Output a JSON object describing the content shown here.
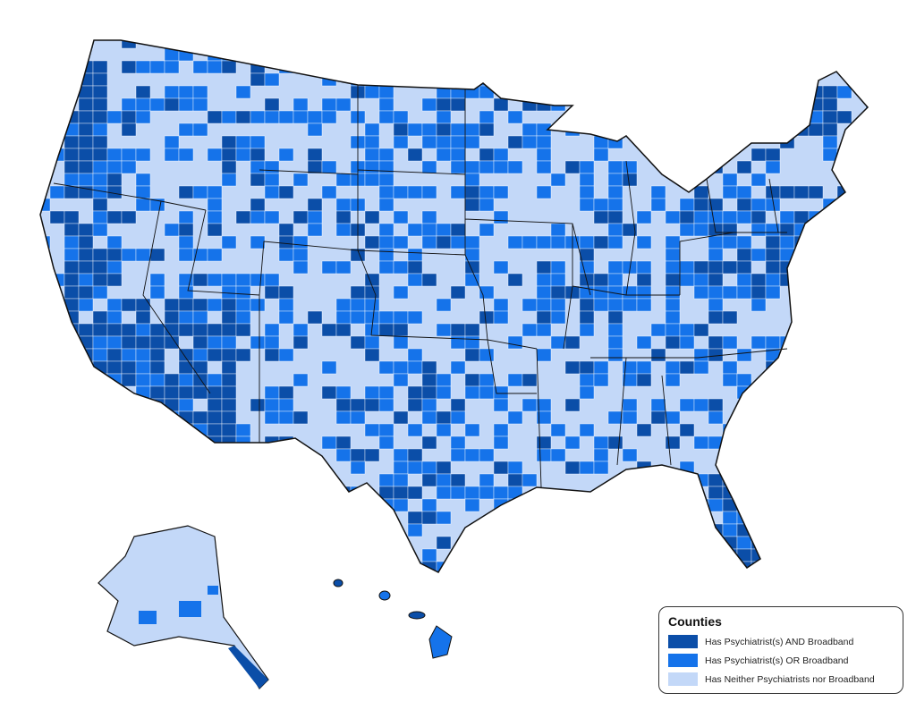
{
  "legend": {
    "title": "Counties",
    "items": [
      {
        "label": "Has Psychiatrist(s) AND Broadband",
        "color": "#0b4ea8"
      },
      {
        "label": "Has Psychiatrist(s) OR Broadband",
        "color": "#1573ea"
      },
      {
        "label": "Has Neither Psychiatrists nor Broadband",
        "color": "#c3d8f8"
      }
    ]
  },
  "colors": {
    "border": "#111111",
    "county_line": "#ffffff"
  }
}
